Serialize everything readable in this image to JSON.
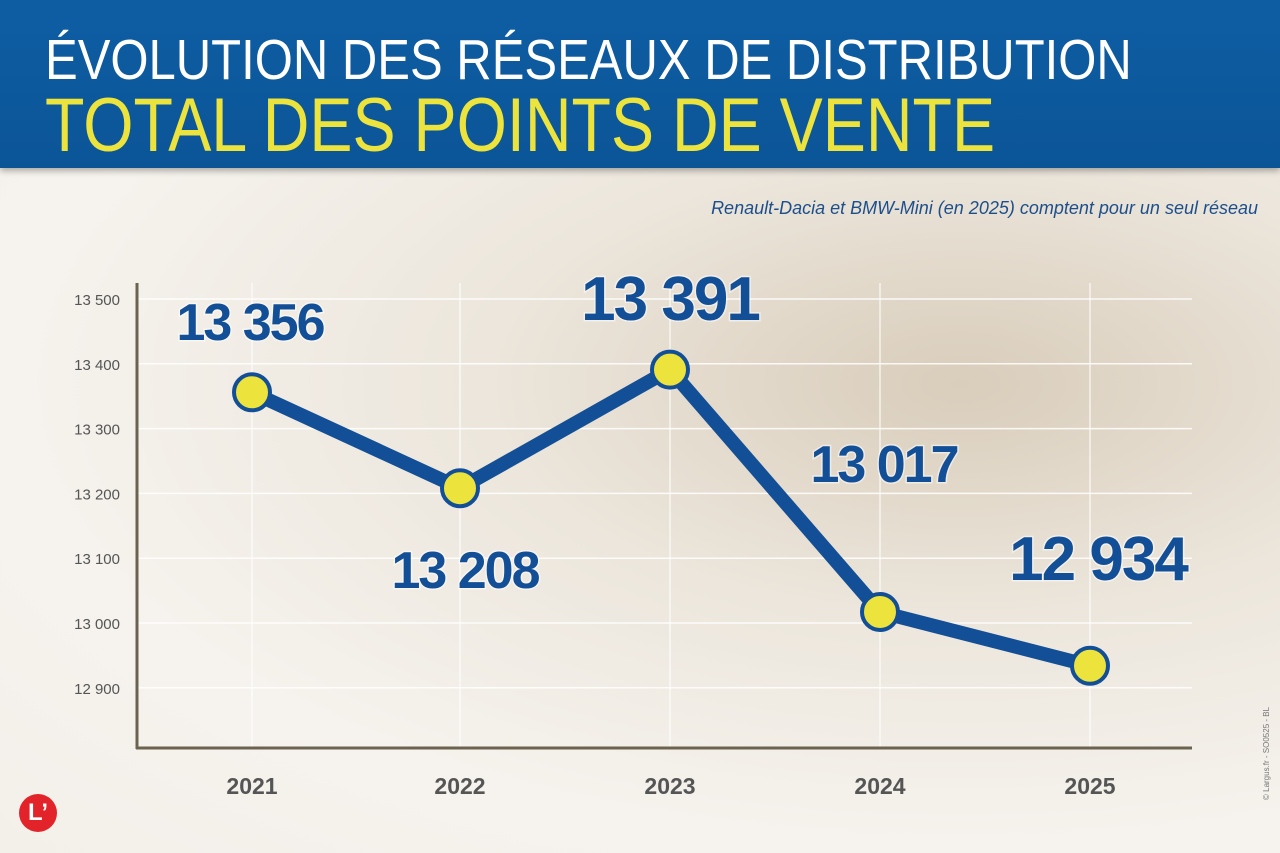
{
  "header": {
    "title": "ÉVOLUTION DES RÉSEAUX DE DISTRIBUTION",
    "subtitle": "TOTAL DES POINTS DE VENTE"
  },
  "note": "Renault-Dacia et BMW-Mini (en 2025) comptent pour un seul réseau",
  "copyright": "© Largus.fr - SO0525 - BL",
  "logo": "L’",
  "colors": {
    "header": "#0d5a9e",
    "title": "#ffffff",
    "subtitle": "#ece33c",
    "line": "#134f96",
    "marker": "#ece33c",
    "axis": "#6b6350"
  },
  "chart_data": {
    "type": "line",
    "categories": [
      "2021",
      "2022",
      "2023",
      "2024",
      "2025"
    ],
    "values": [
      13356,
      13208,
      13391,
      13017,
      12934
    ],
    "data_labels": [
      "13 356",
      "13 208",
      "13 391",
      "13 017",
      "12 934"
    ],
    "yticks": [
      12900,
      13000,
      13100,
      13200,
      13300,
      13400,
      13500
    ],
    "ytick_labels": [
      "12 900",
      "13 000",
      "13 100",
      "13 200",
      "13 300",
      "13 400",
      "13 500"
    ],
    "ylim": [
      12830,
      13500
    ],
    "grid": true
  }
}
